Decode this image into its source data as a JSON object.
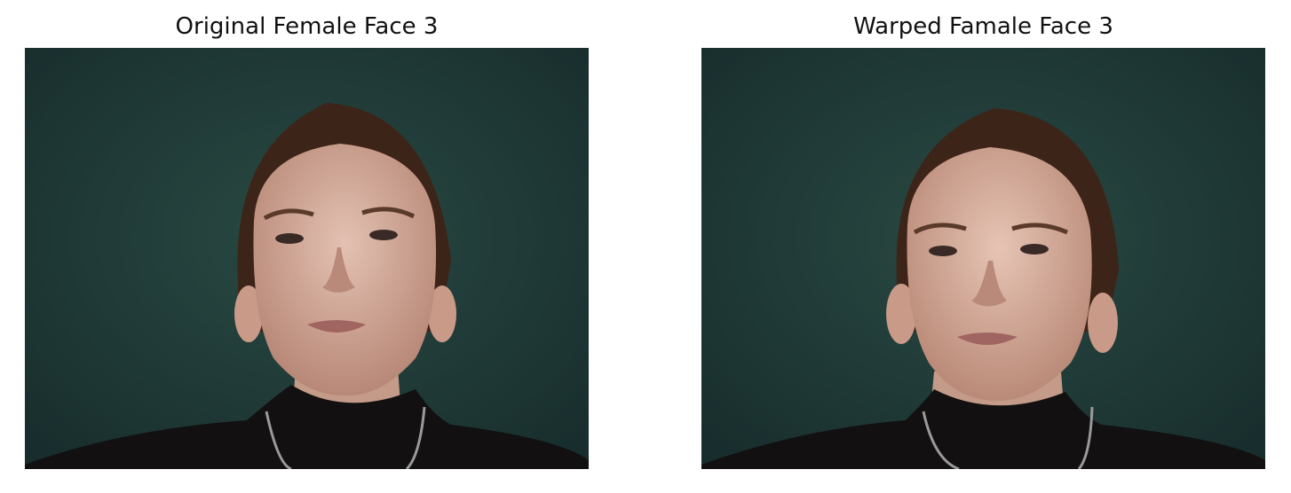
{
  "panels": [
    {
      "title": "Original Female Face 3"
    },
    {
      "title": "Warped Famale Face 3"
    }
  ],
  "colors": {
    "backdrop": "#1f3b36",
    "skin": "#d8b3a3",
    "hair": "#4a2a1c",
    "clothing": "#121010"
  }
}
